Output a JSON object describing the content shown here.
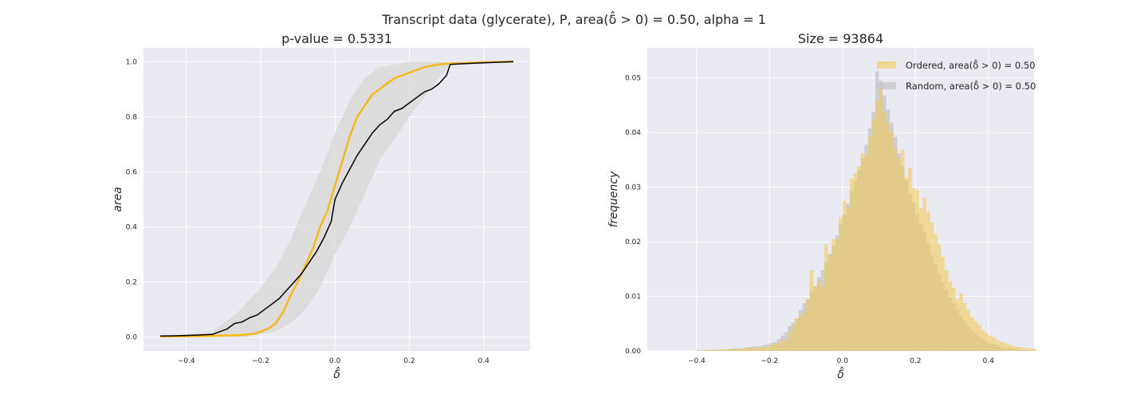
{
  "figure": {
    "suptitle": "Transcript data (glycerate), P, area(δ̂ > 0) = 0.50, alpha = 1"
  },
  "chart_data": [
    {
      "type": "line",
      "title": "p-value = 0.5331",
      "xlabel": "δ̂",
      "ylabel": "area",
      "xlim": [
        -0.515,
        0.525
      ],
      "ylim": [
        -0.05,
        1.05
      ],
      "xticks": [
        -0.4,
        -0.2,
        0.0,
        0.2,
        0.4
      ],
      "xtick_labels": [
        "−0.4",
        "−0.2",
        "0.0",
        "0.2",
        "0.4"
      ],
      "yticks": [
        0.0,
        0.2,
        0.4,
        0.6,
        0.8,
        1.0
      ],
      "ytick_labels": [
        "0.0",
        "0.2",
        "0.4",
        "0.6",
        "0.8",
        "1.0"
      ],
      "grid": true,
      "colors": {
        "ordered": "#f8b812",
        "random": "#000000",
        "band": "#d9d9d9",
        "background": "#eaeaf2"
      },
      "band": {
        "x": [
          -0.47,
          -0.4,
          -0.33,
          -0.3,
          -0.27,
          -0.24,
          -0.2,
          -0.16,
          -0.12,
          -0.08,
          -0.04,
          0.0,
          0.04,
          0.08,
          0.12,
          0.16,
          0.2,
          0.24,
          0.28,
          0.31,
          0.35,
          0.4,
          0.48
        ],
        "lower": [
          0.0,
          0.0,
          0.0,
          0.0,
          0.0,
          0.0,
          0.01,
          0.02,
          0.05,
          0.1,
          0.18,
          0.3,
          0.4,
          0.52,
          0.64,
          0.72,
          0.8,
          0.87,
          0.94,
          0.99,
          1.0,
          1.0,
          1.0
        ],
        "upper": [
          0.005,
          0.01,
          0.02,
          0.05,
          0.08,
          0.12,
          0.18,
          0.25,
          0.35,
          0.48,
          0.6,
          0.74,
          0.86,
          0.94,
          0.98,
          0.99,
          1.0,
          1.0,
          1.0,
          1.0,
          1.0,
          1.0,
          1.0
        ]
      },
      "series": [
        {
          "key": "ordered",
          "x": [
            -0.47,
            -0.4,
            -0.33,
            -0.3,
            -0.25,
            -0.22,
            -0.2,
            -0.18,
            -0.16,
            -0.14,
            -0.12,
            -0.1,
            -0.08,
            -0.06,
            -0.04,
            -0.02,
            0.0,
            0.02,
            0.04,
            0.06,
            0.08,
            0.1,
            0.12,
            0.14,
            0.16,
            0.2,
            0.24,
            0.28,
            0.31,
            0.35,
            0.4,
            0.48
          ],
          "y": [
            0.002,
            0.003,
            0.005,
            0.006,
            0.008,
            0.012,
            0.02,
            0.03,
            0.05,
            0.09,
            0.15,
            0.2,
            0.26,
            0.32,
            0.4,
            0.46,
            0.55,
            0.64,
            0.73,
            0.8,
            0.84,
            0.88,
            0.9,
            0.92,
            0.94,
            0.96,
            0.98,
            0.99,
            0.993,
            0.995,
            0.998,
            1.0
          ]
        },
        {
          "key": "random",
          "x": [
            -0.47,
            -0.43,
            -0.38,
            -0.33,
            -0.31,
            -0.29,
            -0.27,
            -0.25,
            -0.23,
            -0.21,
            -0.19,
            -0.17,
            -0.15,
            -0.13,
            -0.11,
            -0.09,
            -0.07,
            -0.05,
            -0.03,
            -0.01,
            0.0,
            0.02,
            0.04,
            0.06,
            0.08,
            0.1,
            0.12,
            0.14,
            0.16,
            0.18,
            0.2,
            0.22,
            0.24,
            0.26,
            0.28,
            0.3,
            0.31,
            0.35,
            0.4,
            0.48
          ],
          "y": [
            0.004,
            0.005,
            0.007,
            0.01,
            0.02,
            0.03,
            0.05,
            0.055,
            0.07,
            0.08,
            0.1,
            0.12,
            0.14,
            0.17,
            0.2,
            0.23,
            0.27,
            0.31,
            0.36,
            0.42,
            0.5,
            0.56,
            0.61,
            0.66,
            0.7,
            0.74,
            0.77,
            0.79,
            0.82,
            0.83,
            0.85,
            0.87,
            0.89,
            0.9,
            0.92,
            0.95,
            0.99,
            0.993,
            0.996,
            1.0
          ]
        }
      ]
    },
    {
      "type": "histogram",
      "title": "Size = 93864",
      "xlabel": "δ̂",
      "ylabel": "frequency",
      "xlim": [
        -0.535,
        0.525
      ],
      "ylim": [
        0.0,
        0.0555
      ],
      "xticks": [
        -0.4,
        -0.2,
        0.0,
        0.2,
        0.4
      ],
      "xtick_labels": [
        "−0.4",
        "−0.2",
        "0.0",
        "0.2",
        "0.4"
      ],
      "yticks": [
        0.0,
        0.01,
        0.02,
        0.03,
        0.04,
        0.05
      ],
      "ytick_labels": [
        "0.00",
        "0.01",
        "0.02",
        "0.03",
        "0.04",
        "0.05"
      ],
      "grid": true,
      "legend_position": "upper right",
      "bin_start": -0.4,
      "bin_width": 0.01,
      "colors": {
        "ordered": "#f2c94c",
        "random": "#c6c6cc",
        "background": "#eaeaf2"
      },
      "series": [
        {
          "key": "ordered",
          "name": "Ordered, area(δ̂ > 0) = 0.50",
          "values": [
            0.0002,
            0.0,
            0.0002,
            0.0002,
            0.0002,
            0.0002,
            0.0002,
            0.0002,
            0.0003,
            0.0003,
            0.0004,
            0.0003,
            0.0004,
            0.0005,
            0.0006,
            0.0006,
            0.0005,
            0.0007,
            0.0007,
            0.0008,
            0.0012,
            0.0012,
            0.0015,
            0.002,
            0.002,
            0.0033,
            0.0048,
            0.006,
            0.0065,
            0.0072,
            0.0095,
            0.0148,
            0.0118,
            0.0128,
            0.0118,
            0.0195,
            0.0175,
            0.0205,
            0.0205,
            0.0245,
            0.0275,
            0.0262,
            0.0315,
            0.0325,
            0.0338,
            0.0362,
            0.0358,
            0.0392,
            0.0425,
            0.0458,
            0.0482,
            0.0438,
            0.0418,
            0.04,
            0.0372,
            0.0352,
            0.0368,
            0.0318,
            0.0335,
            0.0298,
            0.0295,
            0.0262,
            0.028,
            0.0255,
            0.0235,
            0.0215,
            0.0195,
            0.0172,
            0.0148,
            0.0128,
            0.0115,
            0.0095,
            0.0105,
            0.0088,
            0.0075,
            0.0062,
            0.0055,
            0.0048,
            0.0038,
            0.0033,
            0.0028,
            0.0025,
            0.002,
            0.0017,
            0.0015,
            0.0012,
            0.001,
            0.0008,
            0.0007,
            0.0006,
            0.0005,
            0.0005,
            0.0004
          ]
        },
        {
          "key": "random",
          "name": "Random, area(δ̂ > 0) = 0.50",
          "values": [
            0.0001,
            0.0001,
            0.0002,
            0.0001,
            0.0002,
            0.0002,
            0.0003,
            0.0003,
            0.0003,
            0.0004,
            0.0004,
            0.0005,
            0.0005,
            0.0006,
            0.0007,
            0.0008,
            0.0009,
            0.0009,
            0.0011,
            0.0012,
            0.0015,
            0.0016,
            0.0022,
            0.0028,
            0.0035,
            0.0045,
            0.0052,
            0.0058,
            0.0075,
            0.0088,
            0.0095,
            0.0108,
            0.0118,
            0.0135,
            0.0148,
            0.0162,
            0.0178,
            0.0192,
            0.0212,
            0.0232,
            0.025,
            0.027,
            0.0292,
            0.0312,
            0.0332,
            0.0352,
            0.0378,
            0.0408,
            0.0438,
            0.0512,
            0.0495,
            0.0468,
            0.0442,
            0.0418,
            0.0392,
            0.0362,
            0.0338,
            0.0312,
            0.0288,
            0.0272,
            0.025,
            0.0232,
            0.0218,
            0.0198,
            0.0175,
            0.0158,
            0.0142,
            0.0125,
            0.0112,
            0.0098,
            0.0088,
            0.0075,
            0.0064,
            0.0055,
            0.0046,
            0.0038,
            0.0032,
            0.0027,
            0.0022,
            0.0018,
            0.0014,
            0.0012,
            0.0009,
            0.0008,
            0.0006,
            0.0005,
            0.0004,
            0.0003,
            0.0003,
            0.0002,
            0.0002,
            0.0001,
            0.0001
          ]
        }
      ]
    }
  ]
}
